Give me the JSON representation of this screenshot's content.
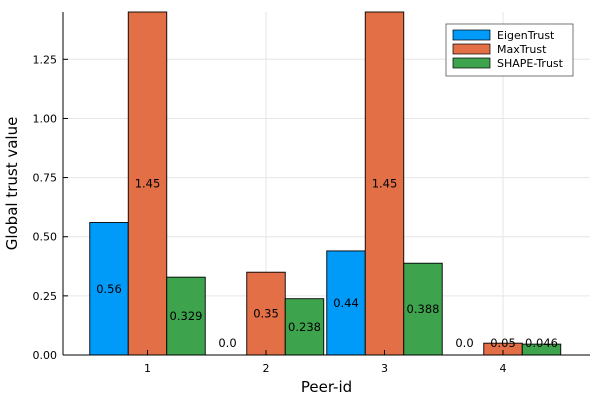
{
  "chart_data": {
    "type": "bar",
    "categories": [
      "1",
      "2",
      "3",
      "4"
    ],
    "series": [
      {
        "name": "EigenTrust",
        "values": [
          0.56,
          0.0,
          0.44,
          0.0
        ],
        "labels": [
          "0.56",
          "0.0",
          "0.44",
          "0.0"
        ],
        "color": "#009af9"
      },
      {
        "name": "MaxTrust",
        "values": [
          1.45,
          0.35,
          1.45,
          0.05
        ],
        "labels": [
          "1.45",
          "0.35",
          "1.45",
          "0.05"
        ],
        "color": "#e26f46"
      },
      {
        "name": "SHAPE-Trust",
        "values": [
          0.329,
          0.238,
          0.388,
          0.046
        ],
        "labels": [
          "0.329",
          "0.238",
          "0.388",
          "0.046"
        ],
        "color": "#3da44d"
      }
    ],
    "xlabel": "Peer-id",
    "ylabel": "Global trust value",
    "ylim": [
      0,
      1.45
    ],
    "yticks": [
      0.0,
      0.25,
      0.5,
      0.75,
      1.0,
      1.25
    ],
    "ytick_labels": [
      "0.00",
      "0.25",
      "0.50",
      "0.75",
      "1.00",
      "1.25"
    ],
    "grid": true,
    "legend_position": "top-right"
  }
}
